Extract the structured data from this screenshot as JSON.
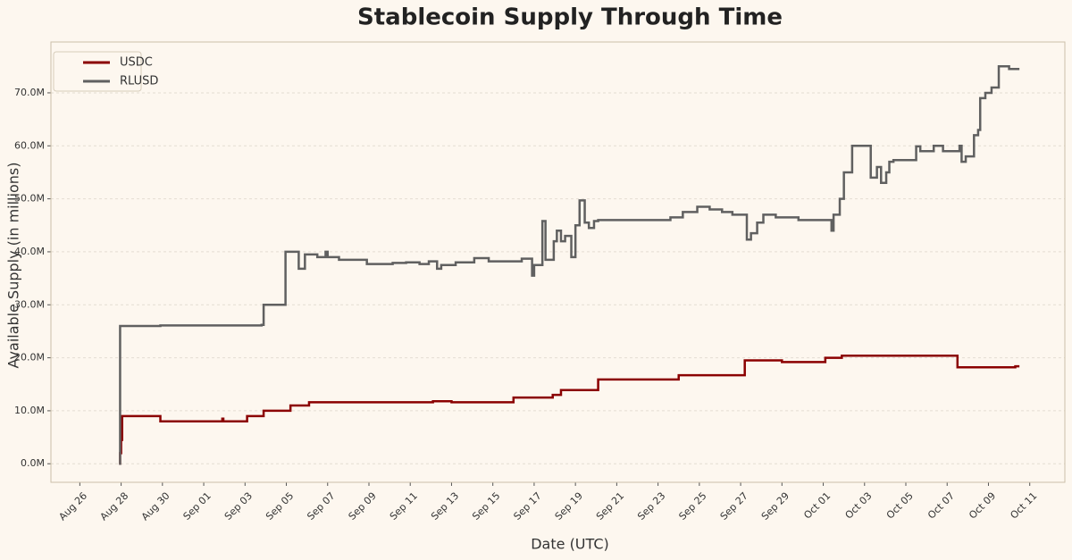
{
  "chart_data": {
    "type": "line",
    "step": "post",
    "title": "Stablecoin Supply Through Time",
    "x_label": "Date (UTC)",
    "y_label": "Available Supply (in millions)",
    "legend": "upper left",
    "grid": true,
    "xlim": [
      -1.4,
      47.7
    ],
    "xticks": [
      {
        "value": 0,
        "label": "Aug 26"
      },
      {
        "value": 2,
        "label": "Aug 28"
      },
      {
        "value": 4,
        "label": "Aug 30"
      },
      {
        "value": 6,
        "label": "Sep 01"
      },
      {
        "value": 8,
        "label": "Sep 03"
      },
      {
        "value": 10,
        "label": "Sep 05"
      },
      {
        "value": 12,
        "label": "Sep 07"
      },
      {
        "value": 14,
        "label": "Sep 09"
      },
      {
        "value": 16,
        "label": "Sep 11"
      },
      {
        "value": 18,
        "label": "Sep 13"
      },
      {
        "value": 20,
        "label": "Sep 15"
      },
      {
        "value": 22,
        "label": "Sep 17"
      },
      {
        "value": 24,
        "label": "Sep 19"
      },
      {
        "value": 26,
        "label": "Sep 21"
      },
      {
        "value": 28,
        "label": "Sep 23"
      },
      {
        "value": 30,
        "label": "Sep 25"
      },
      {
        "value": 32,
        "label": "Sep 27"
      },
      {
        "value": 34,
        "label": "Sep 29"
      },
      {
        "value": 36,
        "label": "Oct 01"
      },
      {
        "value": 38,
        "label": "Oct 03"
      },
      {
        "value": 40,
        "label": "Oct 05"
      },
      {
        "value": 42,
        "label": "Oct 07"
      },
      {
        "value": 44,
        "label": "Oct 09"
      },
      {
        "value": 46,
        "label": "Oct 11"
      }
    ],
    "ylim": [
      -3.5,
      79.6
    ],
    "yticks": [
      {
        "value": 0,
        "label": "0.0M"
      },
      {
        "value": 10,
        "label": "10.0M"
      },
      {
        "value": 20,
        "label": "20.0M"
      },
      {
        "value": 30,
        "label": "30.0M"
      },
      {
        "value": 40,
        "label": "40.0M"
      },
      {
        "value": 50,
        "label": "50.0M"
      },
      {
        "value": 60,
        "label": "60.0M"
      },
      {
        "value": 70,
        "label": "70.0M"
      }
    ],
    "series": [
      {
        "name": "USDC",
        "color": "#8b0000",
        "x": [
          1.9,
          1.95,
          2.0,
          2.05,
          3.9,
          6.9,
          6.95,
          8.1,
          8.9,
          10.2,
          11.1,
          17.1,
          18.0,
          21.0,
          22.9,
          23.3,
          25.1,
          29.0,
          32.2,
          34.0,
          36.1,
          36.9,
          42.5,
          45.3,
          45.5
        ],
        "values": [
          0,
          2,
          4.5,
          9.0,
          8.0,
          8.5,
          8.0,
          9.0,
          10.0,
          11.0,
          11.6,
          11.8,
          11.6,
          12.5,
          13.0,
          13.9,
          15.9,
          16.7,
          19.5,
          19.2,
          20.0,
          20.4,
          18.2,
          18.4,
          18.4
        ]
      },
      {
        "name": "RLUSD",
        "color": "#606060",
        "x": [
          1.9,
          1.95,
          3.9,
          8.8,
          8.9,
          9.96,
          10.6,
          10.9,
          11.5,
          11.9,
          12.0,
          12.55,
          13.9,
          15.15,
          15.8,
          16.45,
          16.9,
          17.3,
          17.5,
          18.2,
          19.1,
          19.8,
          21.4,
          21.9,
          22.0,
          22.4,
          22.55,
          22.95,
          23.1,
          23.3,
          23.5,
          23.8,
          24.0,
          24.2,
          24.45,
          24.65,
          24.9,
          25.1,
          28.6,
          29.2,
          29.9,
          30.5,
          31.1,
          31.6,
          32.3,
          32.5,
          32.8,
          33.1,
          33.7,
          34.8,
          36.4,
          36.5,
          36.8,
          37.0,
          37.4,
          38.3,
          38.6,
          38.8,
          39.05,
          39.2,
          39.4,
          40.5,
          40.7,
          41.35,
          41.8,
          42.6,
          42.7,
          42.9,
          43.3,
          43.5,
          43.6,
          43.85,
          44.15,
          44.5,
          45.0,
          45.5
        ],
        "values": [
          0,
          26.0,
          26.1,
          26.2,
          30.0,
          40.0,
          36.8,
          39.5,
          39.0,
          40.0,
          39.0,
          38.5,
          37.7,
          37.9,
          38.0,
          37.7,
          38.2,
          36.8,
          37.5,
          38.0,
          38.8,
          38.2,
          38.7,
          35.5,
          37.5,
          45.8,
          38.5,
          42.0,
          44.0,
          42.0,
          43.0,
          39.0,
          45.0,
          49.7,
          45.5,
          44.5,
          45.8,
          46.0,
          46.5,
          47.5,
          48.5,
          48.0,
          47.5,
          47.0,
          42.3,
          43.5,
          45.5,
          47.0,
          46.5,
          46.0,
          44.0,
          47.0,
          50.0,
          55.0,
          60.0,
          54.0,
          56.0,
          53.0,
          55.0,
          57.0,
          57.3,
          59.9,
          59.0,
          60.0,
          59.0,
          60.0,
          57.0,
          58.0,
          62.0,
          63.0,
          69.0,
          70.0,
          71.0,
          75.0,
          74.5,
          74.5
        ]
      }
    ]
  }
}
